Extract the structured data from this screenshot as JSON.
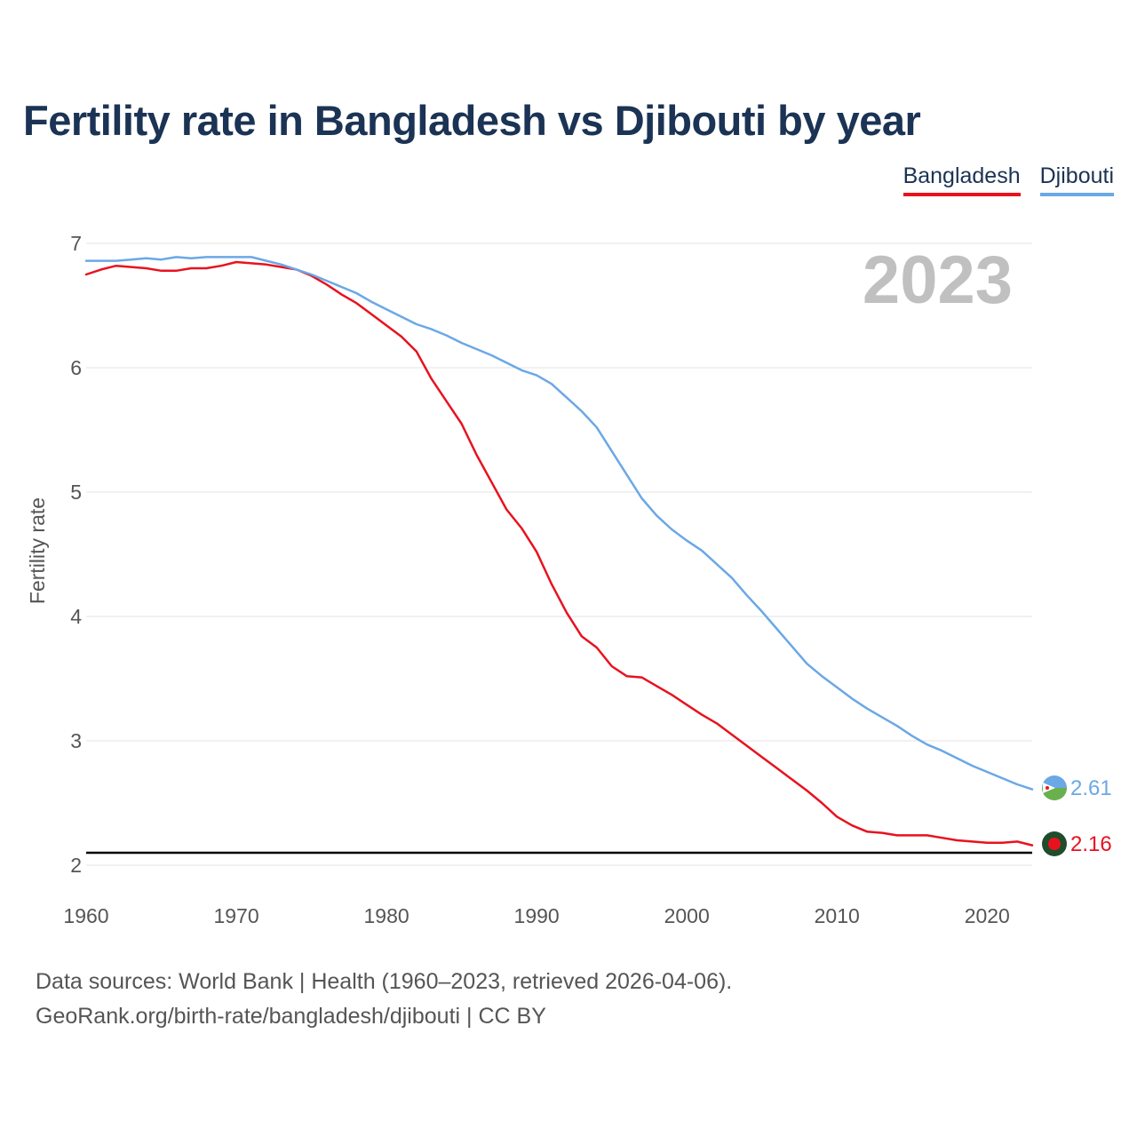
{
  "title": "Fertility rate in Bangladesh vs Djibouti by year",
  "legend": [
    {
      "name": "Bangladesh",
      "color": "#e8121f"
    },
    {
      "name": "Djibouti",
      "color": "#6aa8e6"
    }
  ],
  "year_label": "2023",
  "source": {
    "line1": "Data sources: World Bank | Health (1960–2023, retrieved 2026-04-06).",
    "line2": "GeoRank.org/birth-rate/bangladesh/djibouti | CC BY"
  },
  "chart_data": {
    "type": "line",
    "title": "Fertility rate in Bangladesh vs Djibouti by year",
    "xlabel": "",
    "ylabel": "Fertility rate",
    "xlim": [
      1960,
      2023
    ],
    "ylim": [
      2,
      7
    ],
    "xticks": [
      1960,
      1970,
      1980,
      1990,
      2000,
      2010,
      2020
    ],
    "yticks": [
      2,
      3,
      4,
      5,
      6,
      7
    ],
    "reference_line": {
      "y": 2.1,
      "color": "#000000"
    },
    "x": [
      1960,
      1961,
      1962,
      1963,
      1964,
      1965,
      1966,
      1967,
      1968,
      1969,
      1970,
      1971,
      1972,
      1973,
      1974,
      1975,
      1976,
      1977,
      1978,
      1979,
      1980,
      1981,
      1982,
      1983,
      1984,
      1985,
      1986,
      1987,
      1988,
      1989,
      1990,
      1991,
      1992,
      1993,
      1994,
      1995,
      1996,
      1997,
      1998,
      1999,
      2000,
      2001,
      2002,
      2003,
      2004,
      2005,
      2006,
      2007,
      2008,
      2009,
      2010,
      2011,
      2012,
      2013,
      2014,
      2015,
      2016,
      2017,
      2018,
      2019,
      2020,
      2021,
      2022,
      2023
    ],
    "series": [
      {
        "name": "Bangladesh",
        "color": "#e8121f",
        "end_label": "2.16",
        "values": [
          6.75,
          6.79,
          6.82,
          6.81,
          6.8,
          6.78,
          6.78,
          6.8,
          6.8,
          6.82,
          6.85,
          6.84,
          6.83,
          6.81,
          6.79,
          6.74,
          6.67,
          6.59,
          6.52,
          6.43,
          6.34,
          6.25,
          6.13,
          5.91,
          5.73,
          5.55,
          5.3,
          5.08,
          4.86,
          4.71,
          4.52,
          4.26,
          4.03,
          3.84,
          3.75,
          3.6,
          3.52,
          3.51,
          3.44,
          3.37,
          3.29,
          3.21,
          3.14,
          3.05,
          2.96,
          2.87,
          2.78,
          2.69,
          2.6,
          2.5,
          2.39,
          2.32,
          2.27,
          2.26,
          2.24,
          2.24,
          2.24,
          2.22,
          2.2,
          2.19,
          2.18,
          2.18,
          2.19,
          2.16
        ]
      },
      {
        "name": "Djibouti",
        "color": "#6aa8e6",
        "end_label": "2.61",
        "values": [
          6.86,
          6.86,
          6.86,
          6.87,
          6.88,
          6.87,
          6.89,
          6.88,
          6.89,
          6.89,
          6.89,
          6.89,
          6.86,
          6.83,
          6.79,
          6.75,
          6.7,
          6.65,
          6.6,
          6.53,
          6.47,
          6.41,
          6.35,
          6.31,
          6.26,
          6.2,
          6.15,
          6.1,
          6.04,
          5.98,
          5.94,
          5.87,
          5.76,
          5.65,
          5.52,
          5.33,
          5.14,
          4.95,
          4.81,
          4.7,
          4.61,
          4.53,
          4.42,
          4.31,
          4.17,
          4.04,
          3.9,
          3.76,
          3.62,
          3.52,
          3.43,
          3.34,
          3.26,
          3.19,
          3.12,
          3.04,
          2.97,
          2.92,
          2.86,
          2.8,
          2.75,
          2.7,
          2.65,
          2.61
        ]
      }
    ]
  }
}
